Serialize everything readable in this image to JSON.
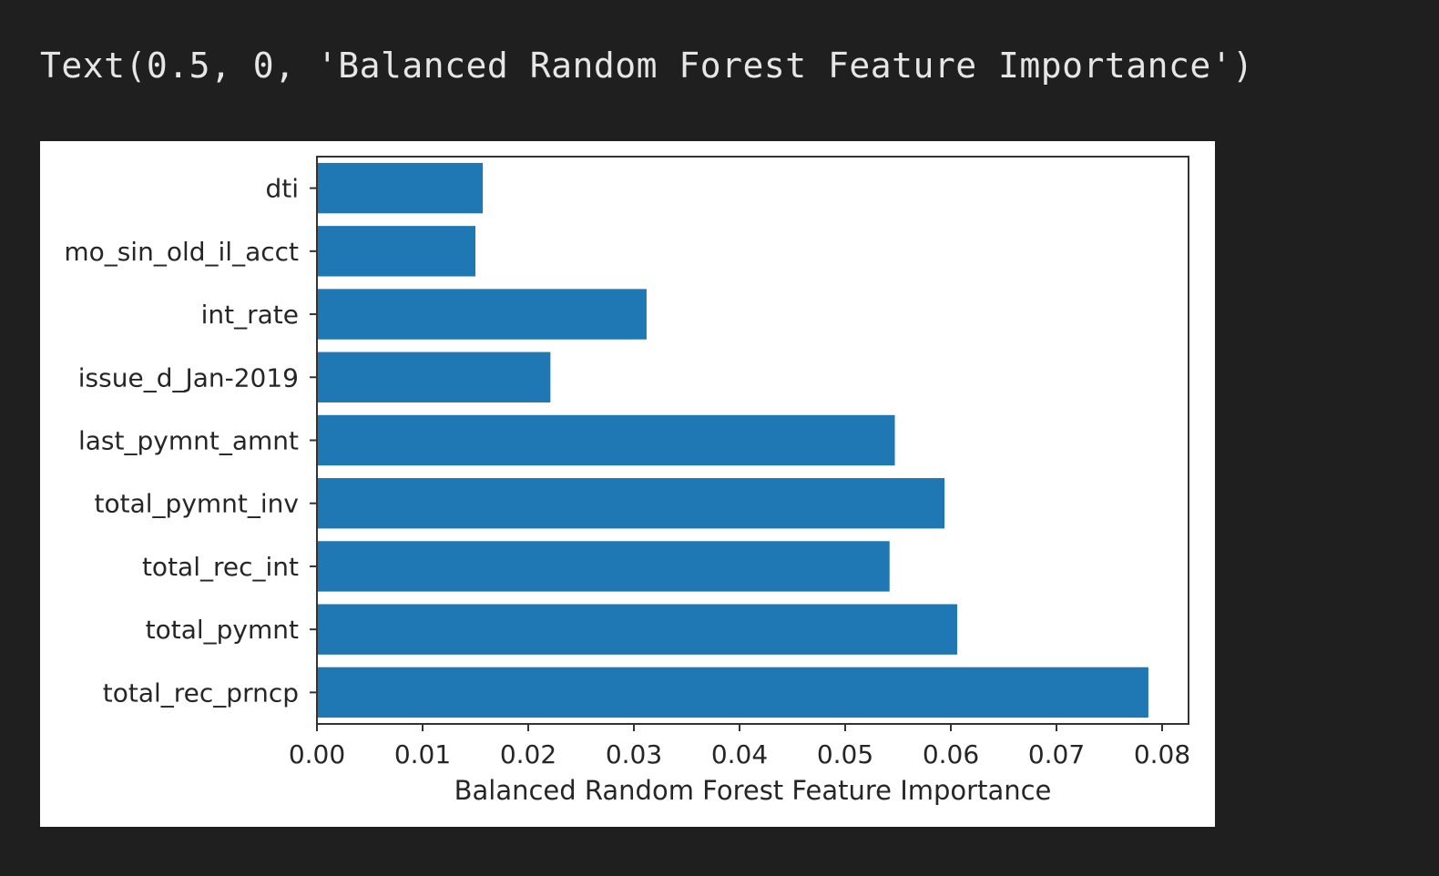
{
  "cell_output": {
    "text": "Text(0.5, 0, 'Balanced Random Forest Feature Importance')"
  },
  "chart_data": {
    "type": "bar",
    "orientation": "horizontal",
    "categories": [
      "dti",
      "mo_sin_old_il_acct",
      "int_rate",
      "issue_d_Jan-2019",
      "last_pymnt_amnt",
      "total_pymnt_inv",
      "total_rec_int",
      "total_pymnt",
      "total_rec_prncp"
    ],
    "values": [
      0.0157,
      0.015,
      0.0312,
      0.0221,
      0.0547,
      0.0594,
      0.0542,
      0.0606,
      0.0787
    ],
    "title": "",
    "xlabel": "Balanced Random Forest Feature Importance",
    "ylabel": "",
    "xlim": [
      0,
      0.0825
    ],
    "xticks": [
      "0.00",
      "0.01",
      "0.02",
      "0.03",
      "0.04",
      "0.05",
      "0.06",
      "0.07",
      "0.08"
    ],
    "bar_color": "#1f77b4",
    "grid": false
  }
}
